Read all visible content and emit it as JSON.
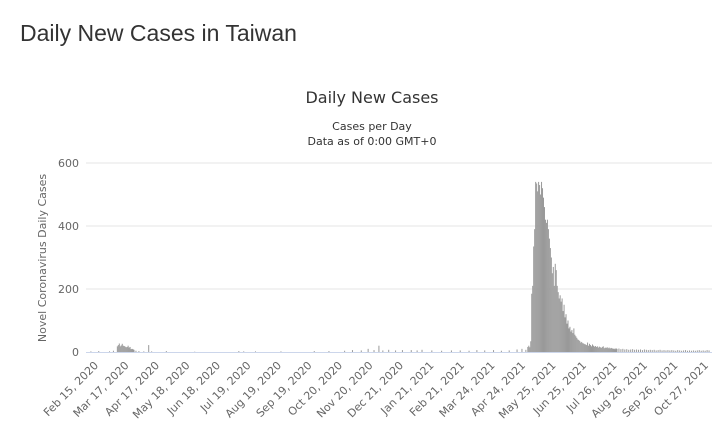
{
  "page": {
    "title": "Daily New Cases in Taiwan"
  },
  "colors": {
    "bar": "#999999",
    "grid": "#e6e6e6",
    "axis": "#ccd6eb",
    "text": "#333333",
    "tick_text": "#666666"
  },
  "chart_data": {
    "type": "bar",
    "title": "Daily New Cases",
    "subtitle_lines": [
      "Cases per Day",
      "Data as of 0:00 GMT+0"
    ],
    "xlabel": "",
    "ylabel": "Novel Coronavirus Daily Cases",
    "ylim": [
      0,
      600
    ],
    "yticks": [
      0,
      200,
      400,
      600
    ],
    "grid": true,
    "legend": "none",
    "x_start": "2020-02-15",
    "x_end": "2021-11-15",
    "xtick_labels": [
      "Feb 15, 2020",
      "Mar 17, 2020",
      "Apr 17, 2020",
      "May 18, 2020",
      "Jun 18, 2020",
      "Jul 19, 2020",
      "Aug 19, 2020",
      "Sep 19, 2020",
      "Oct 20, 2020",
      "Nov 20, 2020",
      "Dec 21, 2020",
      "Jan 21, 2021",
      "Feb 21, 2021",
      "Mar 24, 2021",
      "Apr 24, 2021",
      "May 25, 2021",
      "Jun 25, 2021",
      "Jul 26, 2021",
      "Aug 26, 2021",
      "Sep 26, 2021",
      "Oct 27, 2021"
    ],
    "series": [
      {
        "values": [
          {
            "x": "2020-02-20",
            "y": 2
          },
          {
            "x": "2020-02-28",
            "y": 3
          },
          {
            "x": "2020-03-10",
            "y": 2
          },
          {
            "x": "2020-03-14",
            "y": 4
          },
          {
            "x": "2020-03-18",
            "y": 18
          },
          {
            "x": "2020-03-19",
            "y": 22
          },
          {
            "x": "2020-03-20",
            "y": 27
          },
          {
            "x": "2020-03-21",
            "y": 18
          },
          {
            "x": "2020-03-22",
            "y": 21
          },
          {
            "x": "2020-03-23",
            "y": 26
          },
          {
            "x": "2020-03-24",
            "y": 20
          },
          {
            "x": "2020-03-25",
            "y": 19
          },
          {
            "x": "2020-03-26",
            "y": 17
          },
          {
            "x": "2020-03-27",
            "y": 15
          },
          {
            "x": "2020-03-28",
            "y": 16
          },
          {
            "x": "2020-03-29",
            "y": 20
          },
          {
            "x": "2020-03-30",
            "y": 14
          },
          {
            "x": "2020-03-31",
            "y": 16
          },
          {
            "x": "2020-04-01",
            "y": 9
          },
          {
            "x": "2020-04-02",
            "y": 10
          },
          {
            "x": "2020-04-03",
            "y": 9
          },
          {
            "x": "2020-04-04",
            "y": 7
          },
          {
            "x": "2020-04-06",
            "y": 4
          },
          {
            "x": "2020-04-09",
            "y": 3
          },
          {
            "x": "2020-04-14",
            "y": 2
          },
          {
            "x": "2020-04-19",
            "y": 22
          },
          {
            "x": "2020-04-22",
            "y": 2
          },
          {
            "x": "2020-05-07",
            "y": 3
          },
          {
            "x": "2020-06-05",
            "y": 1
          },
          {
            "x": "2020-07-20",
            "y": 3
          },
          {
            "x": "2020-07-25",
            "y": 2
          },
          {
            "x": "2020-08-06",
            "y": 2
          },
          {
            "x": "2020-09-01",
            "y": 2
          },
          {
            "x": "2020-10-05",
            "y": 3
          },
          {
            "x": "2020-10-20",
            "y": 3
          },
          {
            "x": "2020-11-05",
            "y": 4
          },
          {
            "x": "2020-11-13",
            "y": 6
          },
          {
            "x": "2020-11-22",
            "y": 5
          },
          {
            "x": "2020-11-29",
            "y": 10
          },
          {
            "x": "2020-12-05",
            "y": 6
          },
          {
            "x": "2020-12-10",
            "y": 20
          },
          {
            "x": "2020-12-14",
            "y": 5
          },
          {
            "x": "2020-12-20",
            "y": 7
          },
          {
            "x": "2020-12-27",
            "y": 5
          },
          {
            "x": "2021-01-03",
            "y": 6
          },
          {
            "x": "2021-01-12",
            "y": 6
          },
          {
            "x": "2021-01-18",
            "y": 5
          },
          {
            "x": "2021-01-23",
            "y": 7
          },
          {
            "x": "2021-02-02",
            "y": 5
          },
          {
            "x": "2021-02-12",
            "y": 4
          },
          {
            "x": "2021-02-22",
            "y": 5
          },
          {
            "x": "2021-03-03",
            "y": 5
          },
          {
            "x": "2021-03-12",
            "y": 4
          },
          {
            "x": "2021-03-20",
            "y": 6
          },
          {
            "x": "2021-03-28",
            "y": 5
          },
          {
            "x": "2021-04-06",
            "y": 6
          },
          {
            "x": "2021-04-14",
            "y": 4
          },
          {
            "x": "2021-04-22",
            "y": 5
          },
          {
            "x": "2021-04-30",
            "y": 8
          },
          {
            "x": "2021-05-05",
            "y": 10
          },
          {
            "x": "2021-05-09",
            "y": 7
          },
          {
            "x": "2021-05-11",
            "y": 16
          },
          {
            "x": "2021-05-12",
            "y": 20
          },
          {
            "x": "2021-05-13",
            "y": 15
          },
          {
            "x": "2021-05-14",
            "y": 34
          },
          {
            "x": "2021-05-15",
            "y": 185
          },
          {
            "x": "2021-05-16",
            "y": 210
          },
          {
            "x": "2021-05-17",
            "y": 335
          },
          {
            "x": "2021-05-18",
            "y": 390
          },
          {
            "x": "2021-05-19",
            "y": 540
          },
          {
            "x": "2021-05-20",
            "y": 535
          },
          {
            "x": "2021-05-21",
            "y": 510
          },
          {
            "x": "2021-05-22",
            "y": 540
          },
          {
            "x": "2021-05-23",
            "y": 530
          },
          {
            "x": "2021-05-24",
            "y": 500
          },
          {
            "x": "2021-05-25",
            "y": 540
          },
          {
            "x": "2021-05-26",
            "y": 520
          },
          {
            "x": "2021-05-27",
            "y": 490
          },
          {
            "x": "2021-05-28",
            "y": 460
          },
          {
            "x": "2021-05-29",
            "y": 420
          },
          {
            "x": "2021-05-30",
            "y": 410
          },
          {
            "x": "2021-05-31",
            "y": 420
          },
          {
            "x": "2021-06-01",
            "y": 390
          },
          {
            "x": "2021-06-02",
            "y": 360
          },
          {
            "x": "2021-06-03",
            "y": 330
          },
          {
            "x": "2021-06-04",
            "y": 300
          },
          {
            "x": "2021-06-05",
            "y": 250
          },
          {
            "x": "2021-06-06",
            "y": 270
          },
          {
            "x": "2021-06-07",
            "y": 210
          },
          {
            "x": "2021-06-08",
            "y": 280
          },
          {
            "x": "2021-06-09",
            "y": 260
          },
          {
            "x": "2021-06-10",
            "y": 210
          },
          {
            "x": "2021-06-11",
            "y": 190
          },
          {
            "x": "2021-06-12",
            "y": 170
          },
          {
            "x": "2021-06-13",
            "y": 180
          },
          {
            "x": "2021-06-14",
            "y": 160
          },
          {
            "x": "2021-06-15",
            "y": 170
          },
          {
            "x": "2021-06-16",
            "y": 130
          },
          {
            "x": "2021-06-17",
            "y": 150
          },
          {
            "x": "2021-06-18",
            "y": 110
          },
          {
            "x": "2021-06-19",
            "y": 120
          },
          {
            "x": "2021-06-20",
            "y": 90
          },
          {
            "x": "2021-06-21",
            "y": 100
          },
          {
            "x": "2021-06-22",
            "y": 75
          },
          {
            "x": "2021-06-23",
            "y": 80
          },
          {
            "x": "2021-06-24",
            "y": 65
          },
          {
            "x": "2021-06-25",
            "y": 70
          },
          {
            "x": "2021-06-26",
            "y": 60
          },
          {
            "x": "2021-06-27",
            "y": 75
          },
          {
            "x": "2021-06-28",
            "y": 55
          },
          {
            "x": "2021-06-29",
            "y": 50
          },
          {
            "x": "2021-06-30",
            "y": 45
          },
          {
            "x": "2021-07-01",
            "y": 40
          },
          {
            "x": "2021-07-02",
            "y": 38
          },
          {
            "x": "2021-07-03",
            "y": 35
          },
          {
            "x": "2021-07-04",
            "y": 30
          },
          {
            "x": "2021-07-05",
            "y": 32
          },
          {
            "x": "2021-07-06",
            "y": 28
          },
          {
            "x": "2021-07-07",
            "y": 27
          },
          {
            "x": "2021-07-08",
            "y": 25
          },
          {
            "x": "2021-07-09",
            "y": 24
          },
          {
            "x": "2021-07-10",
            "y": 22
          },
          {
            "x": "2021-07-11",
            "y": 30
          },
          {
            "x": "2021-07-12",
            "y": 20
          },
          {
            "x": "2021-07-13",
            "y": 26
          },
          {
            "x": "2021-07-14",
            "y": 22
          },
          {
            "x": "2021-07-15",
            "y": 18
          },
          {
            "x": "2021-07-16",
            "y": 24
          },
          {
            "x": "2021-07-17",
            "y": 20
          },
          {
            "x": "2021-07-18",
            "y": 17
          },
          {
            "x": "2021-07-19",
            "y": 19
          },
          {
            "x": "2021-07-20",
            "y": 16
          },
          {
            "x": "2021-07-21",
            "y": 18
          },
          {
            "x": "2021-07-22",
            "y": 14
          },
          {
            "x": "2021-07-23",
            "y": 17
          },
          {
            "x": "2021-07-24",
            "y": 15
          },
          {
            "x": "2021-07-25",
            "y": 13
          },
          {
            "x": "2021-07-26",
            "y": 16
          },
          {
            "x": "2021-07-27",
            "y": 18
          },
          {
            "x": "2021-07-28",
            "y": 12
          },
          {
            "x": "2021-07-29",
            "y": 14
          },
          {
            "x": "2021-07-30",
            "y": 13
          },
          {
            "x": "2021-07-31",
            "y": 15
          },
          {
            "x": "2021-08-01",
            "y": 12
          },
          {
            "x": "2021-08-02",
            "y": 14
          },
          {
            "x": "2021-08-03",
            "y": 11
          },
          {
            "x": "2021-08-04",
            "y": 13
          },
          {
            "x": "2021-08-05",
            "y": 12
          },
          {
            "x": "2021-08-06",
            "y": 10
          },
          {
            "x": "2021-08-07",
            "y": 11
          },
          {
            "x": "2021-08-08",
            "y": 9
          },
          {
            "x": "2021-08-09",
            "y": 12
          },
          {
            "x": "2021-08-10",
            "y": 10
          },
          {
            "x": "2021-08-12",
            "y": 11
          },
          {
            "x": "2021-08-14",
            "y": 9
          },
          {
            "x": "2021-08-16",
            "y": 10
          },
          {
            "x": "2021-08-18",
            "y": 8
          },
          {
            "x": "2021-08-20",
            "y": 9
          },
          {
            "x": "2021-08-22",
            "y": 7
          },
          {
            "x": "2021-08-24",
            "y": 8
          },
          {
            "x": "2021-08-26",
            "y": 9
          },
          {
            "x": "2021-08-28",
            "y": 7
          },
          {
            "x": "2021-08-30",
            "y": 8
          },
          {
            "x": "2021-09-01",
            "y": 7
          },
          {
            "x": "2021-09-03",
            "y": 8
          },
          {
            "x": "2021-09-05",
            "y": 6
          },
          {
            "x": "2021-09-07",
            "y": 8
          },
          {
            "x": "2021-09-09",
            "y": 7
          },
          {
            "x": "2021-09-11",
            "y": 6
          },
          {
            "x": "2021-09-13",
            "y": 7
          },
          {
            "x": "2021-09-15",
            "y": 6
          },
          {
            "x": "2021-09-17",
            "y": 7
          },
          {
            "x": "2021-09-19",
            "y": 5
          },
          {
            "x": "2021-09-21",
            "y": 6
          },
          {
            "x": "2021-09-23",
            "y": 7
          },
          {
            "x": "2021-09-25",
            "y": 5
          },
          {
            "x": "2021-09-27",
            "y": 6
          },
          {
            "x": "2021-09-29",
            "y": 5
          },
          {
            "x": "2021-10-01",
            "y": 6
          },
          {
            "x": "2021-10-03",
            "y": 5
          },
          {
            "x": "2021-10-05",
            "y": 6
          },
          {
            "x": "2021-10-07",
            "y": 5
          },
          {
            "x": "2021-10-09",
            "y": 4
          },
          {
            "x": "2021-10-11",
            "y": 6
          },
          {
            "x": "2021-10-13",
            "y": 5
          },
          {
            "x": "2021-10-15",
            "y": 4
          },
          {
            "x": "2021-10-17",
            "y": 5
          },
          {
            "x": "2021-10-19",
            "y": 6
          },
          {
            "x": "2021-10-21",
            "y": 4
          },
          {
            "x": "2021-10-23",
            "y": 5
          },
          {
            "x": "2021-10-25",
            "y": 4
          },
          {
            "x": "2021-10-27",
            "y": 5
          },
          {
            "x": "2021-10-29",
            "y": 4
          },
          {
            "x": "2021-10-31",
            "y": 5
          },
          {
            "x": "2021-11-02",
            "y": 6
          },
          {
            "x": "2021-11-04",
            "y": 4
          },
          {
            "x": "2021-11-06",
            "y": 5
          },
          {
            "x": "2021-11-08",
            "y": 4
          },
          {
            "x": "2021-11-10",
            "y": 6
          },
          {
            "x": "2021-11-12",
            "y": 5
          }
        ]
      }
    ]
  }
}
